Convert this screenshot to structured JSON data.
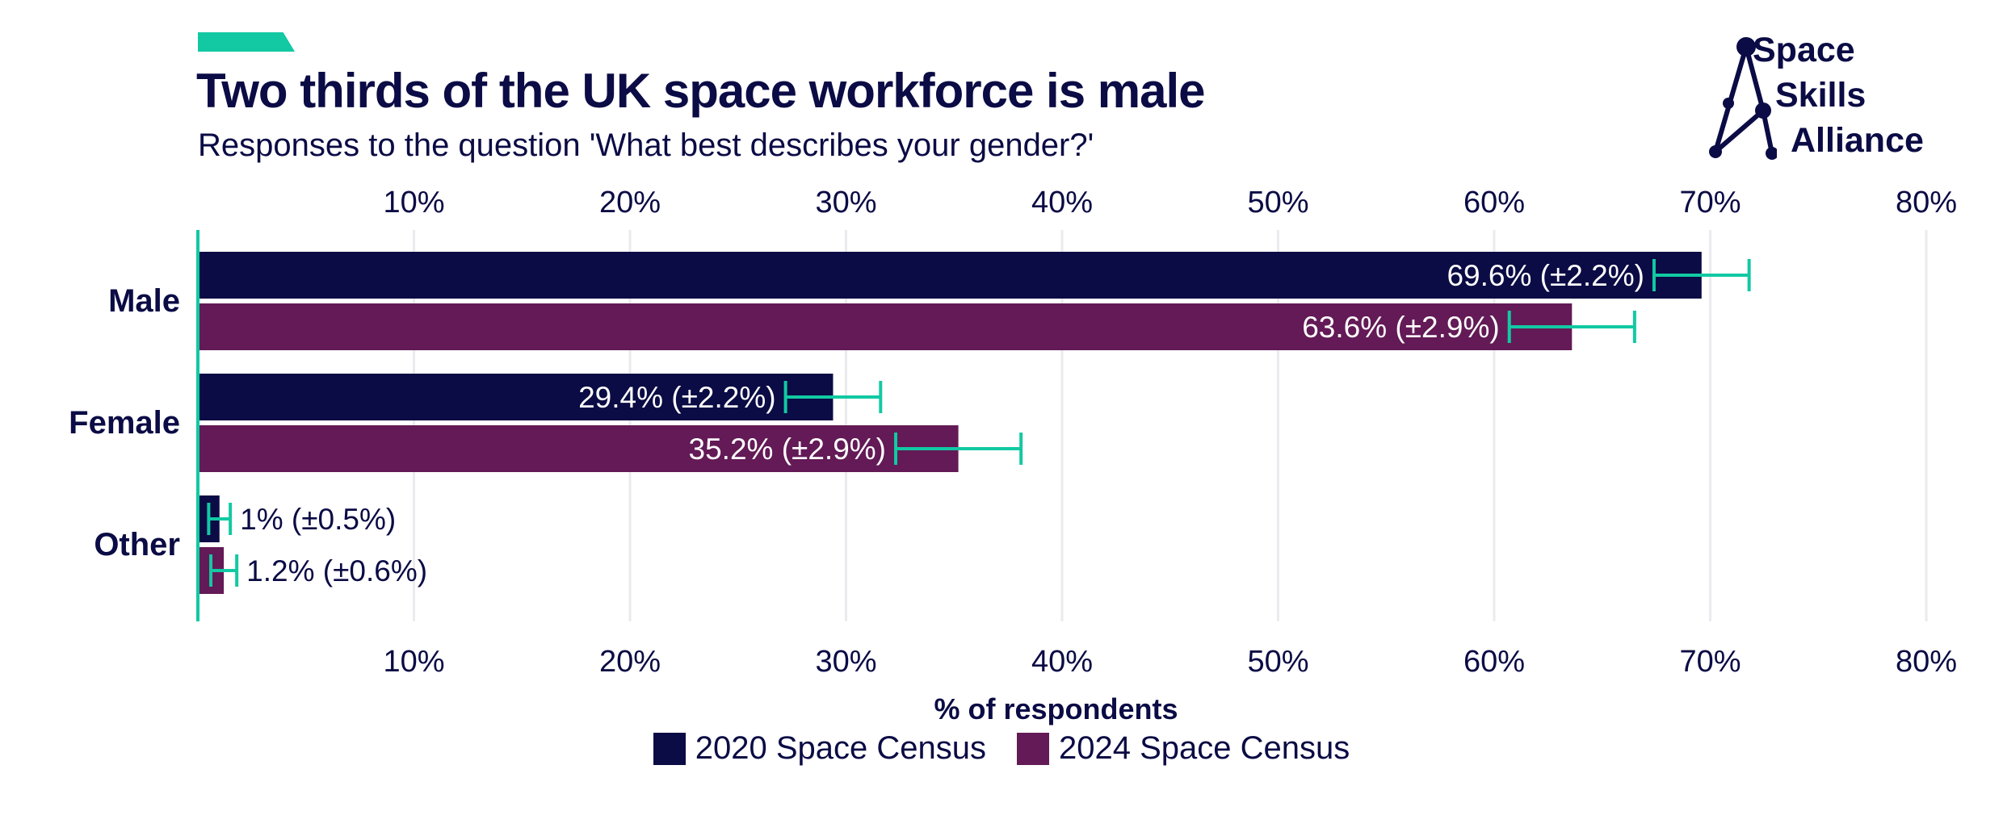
{
  "header": {
    "title": "Two thirds of the UK space workforce is male",
    "subtitle": "Responses to the question 'What best describes your gender?'"
  },
  "logo": {
    "line1": "Space",
    "line2": "Skills",
    "line3": "Alliance"
  },
  "colors": {
    "accent": "#12c9a3",
    "series_2020": "#0b0b45",
    "series_2024": "#631a56",
    "text": "#0b0b45",
    "grid": "#ebebef"
  },
  "chart_data": {
    "type": "bar",
    "orientation": "horizontal",
    "categories": [
      "Male",
      "Female",
      "Other"
    ],
    "series": [
      {
        "name": "2020 Space Census",
        "values": [
          69.6,
          29.4,
          1
        ],
        "errors": [
          2.2,
          2.2,
          0.5
        ],
        "labels": [
          "69.6% (±2.2%)",
          "29.4% (±2.2%)",
          "1% (±0.5%)"
        ]
      },
      {
        "name": "2024 Space Census",
        "values": [
          63.6,
          35.2,
          1.2
        ],
        "errors": [
          2.9,
          2.9,
          0.6
        ],
        "labels": [
          "63.6% (±2.9%)",
          "35.2% (±2.9%)",
          "1.2% (±0.6%)"
        ]
      }
    ],
    "xlim": [
      0,
      80
    ],
    "ticks": [
      10,
      20,
      30,
      40,
      50,
      60,
      70,
      80
    ],
    "tick_labels": [
      "10%",
      "20%",
      "30%",
      "40%",
      "50%",
      "60%",
      "70%",
      "80%"
    ],
    "xlabel": "% of respondents",
    "grid": true,
    "axis_ticks_position": "top and bottom",
    "legend_position": "bottom-center"
  }
}
